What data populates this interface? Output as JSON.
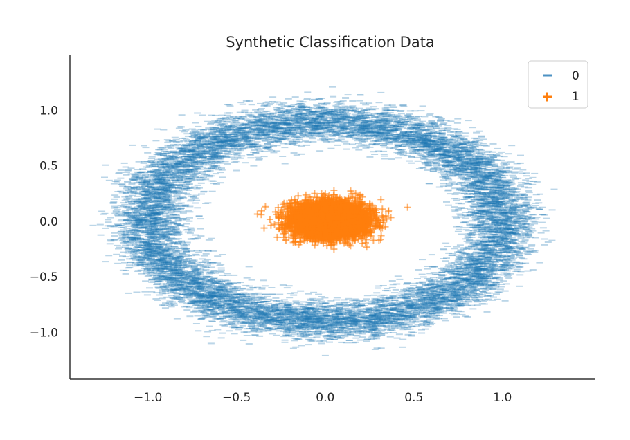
{
  "chart_data": {
    "type": "scatter",
    "title": "Synthetic Classification Data",
    "xlabel": "",
    "ylabel": "",
    "xlim": [
      -1.44,
      1.52
    ],
    "ylim": [
      -1.42,
      1.5
    ],
    "x_ticks": [
      -1.0,
      -0.5,
      0.0,
      0.5,
      1.0
    ],
    "x_tick_labels": [
      "−1.0",
      "−0.5",
      "0.0",
      "0.5",
      "1.0"
    ],
    "y_ticks": [
      -1.0,
      -0.5,
      0.0,
      0.5,
      1.0
    ],
    "y_tick_labels": [
      "−1.0",
      "−0.5",
      "0.0",
      "0.5",
      "1.0"
    ],
    "grid": false,
    "spines": [
      "left",
      "bottom"
    ],
    "legend": {
      "placement": "top-right"
    },
    "series": [
      {
        "name": "0",
        "marker": "_",
        "color": "#1f77b4",
        "alpha": 0.3,
        "distribution": "ring",
        "center": [
          0.0,
          0.0
        ],
        "radius_x": 1.0,
        "radius_y": 0.9,
        "noise_sd": 0.1,
        "n_points": 12000
      },
      {
        "name": "1",
        "marker": "+",
        "color": "#ff7f0e",
        "alpha": 0.6,
        "distribution": "blob",
        "center": [
          0.03,
          0.01
        ],
        "sd_x": 0.1,
        "sd_y": 0.075,
        "n_points": 6000
      }
    ]
  }
}
